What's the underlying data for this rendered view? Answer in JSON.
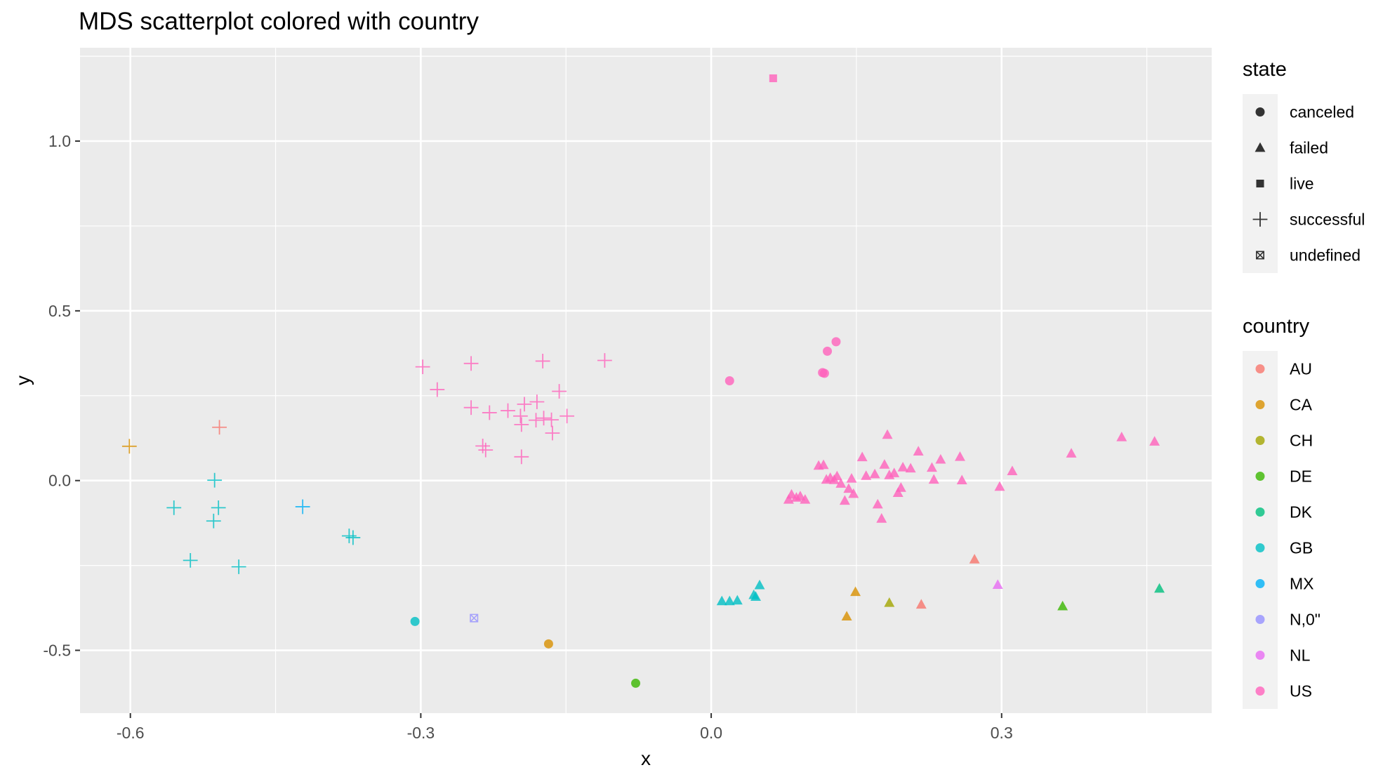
{
  "chart_data": {
    "type": "scatter",
    "title": "MDS scatterplot colored with country",
    "xlabel": "x",
    "ylabel": "y",
    "xlim": [
      -0.652,
      0.517
    ],
    "ylim": [
      -0.685,
      1.275
    ],
    "x_ticks": [
      -0.6,
      -0.3,
      0.0,
      0.3
    ],
    "x_tick_labels": [
      "-0.6",
      "-0.3",
      "0.0",
      "0.3"
    ],
    "y_ticks": [
      -0.5,
      0.0,
      0.5,
      1.0
    ],
    "y_tick_labels": [
      "-0.5",
      "0.0",
      "0.5",
      "1.0"
    ],
    "grid": true,
    "legend_placement": "right",
    "legends": [
      {
        "title": "state",
        "entries": [
          {
            "label": "canceled",
            "shape": "circle"
          },
          {
            "label": "failed",
            "shape": "triangle"
          },
          {
            "label": "live",
            "shape": "square"
          },
          {
            "label": "successful",
            "shape": "plus"
          },
          {
            "label": "undefined",
            "shape": "squarecross"
          }
        ]
      },
      {
        "title": "country",
        "entries": [
          {
            "label": "AU",
            "color": "#F8766D"
          },
          {
            "label": "CA",
            "color": "#D89000"
          },
          {
            "label": "CH",
            "color": "#A3A500"
          },
          {
            "label": "DE",
            "color": "#39B600"
          },
          {
            "label": "DK",
            "color": "#00BF7D"
          },
          {
            "label": "GB",
            "color": "#00BFC4"
          },
          {
            "label": "MX",
            "color": "#00B0F6"
          },
          {
            "label": "N,0\"",
            "color": "#9590FF"
          },
          {
            "label": "NL",
            "color": "#E76BF3"
          },
          {
            "label": "US",
            "color": "#FF62BC"
          }
        ]
      }
    ],
    "points": [
      {
        "x": 0.064,
        "y": 1.185,
        "state": "live",
        "country": "US"
      },
      {
        "x": 0.019,
        "y": 0.294,
        "state": "canceled",
        "country": "US"
      },
      {
        "x": 0.12,
        "y": 0.381,
        "state": "canceled",
        "country": "US"
      },
      {
        "x": 0.129,
        "y": 0.409,
        "state": "canceled",
        "country": "US"
      },
      {
        "x": 0.115,
        "y": 0.318,
        "state": "canceled",
        "country": "US"
      },
      {
        "x": 0.117,
        "y": 0.316,
        "state": "canceled",
        "country": "US"
      },
      {
        "x": -0.306,
        "y": -0.415,
        "state": "canceled",
        "country": "GB"
      },
      {
        "x": -0.168,
        "y": -0.481,
        "state": "canceled",
        "country": "CA"
      },
      {
        "x": -0.078,
        "y": -0.597,
        "state": "canceled",
        "country": "DE"
      },
      {
        "x": -0.245,
        "y": -0.405,
        "state": "undefined",
        "country": "N,0\""
      },
      {
        "x": -0.601,
        "y": 0.101,
        "state": "successful",
        "country": "CA"
      },
      {
        "x": -0.508,
        "y": 0.157,
        "state": "successful",
        "country": "AU"
      },
      {
        "x": -0.513,
        "y": 0.001,
        "state": "successful",
        "country": "GB"
      },
      {
        "x": -0.555,
        "y": -0.08,
        "state": "successful",
        "country": "GB"
      },
      {
        "x": -0.509,
        "y": -0.08,
        "state": "successful",
        "country": "GB"
      },
      {
        "x": -0.514,
        "y": -0.119,
        "state": "successful",
        "country": "GB"
      },
      {
        "x": -0.538,
        "y": -0.235,
        "state": "successful",
        "country": "GB"
      },
      {
        "x": -0.488,
        "y": -0.254,
        "state": "successful",
        "country": "GB"
      },
      {
        "x": -0.422,
        "y": -0.077,
        "state": "successful",
        "country": "MX"
      },
      {
        "x": -0.374,
        "y": -0.163,
        "state": "successful",
        "country": "GB"
      },
      {
        "x": -0.37,
        "y": -0.168,
        "state": "successful",
        "country": "GB"
      },
      {
        "x": -0.298,
        "y": 0.335,
        "state": "successful",
        "country": "US"
      },
      {
        "x": -0.283,
        "y": 0.268,
        "state": "successful",
        "country": "US"
      },
      {
        "x": -0.248,
        "y": 0.345,
        "state": "successful",
        "country": "US"
      },
      {
        "x": -0.248,
        "y": 0.215,
        "state": "successful",
        "country": "US"
      },
      {
        "x": -0.229,
        "y": 0.2,
        "state": "successful",
        "country": "US"
      },
      {
        "x": -0.236,
        "y": 0.102,
        "state": "successful",
        "country": "US"
      },
      {
        "x": -0.233,
        "y": 0.09,
        "state": "successful",
        "country": "US"
      },
      {
        "x": -0.21,
        "y": 0.206,
        "state": "successful",
        "country": "US"
      },
      {
        "x": -0.197,
        "y": 0.19,
        "state": "successful",
        "country": "US"
      },
      {
        "x": -0.196,
        "y": 0.165,
        "state": "successful",
        "country": "US"
      },
      {
        "x": -0.193,
        "y": 0.225,
        "state": "successful",
        "country": "US"
      },
      {
        "x": -0.18,
        "y": 0.232,
        "state": "successful",
        "country": "US"
      },
      {
        "x": -0.181,
        "y": 0.178,
        "state": "successful",
        "country": "US"
      },
      {
        "x": -0.173,
        "y": 0.184,
        "state": "successful",
        "country": "US"
      },
      {
        "x": -0.174,
        "y": 0.352,
        "state": "successful",
        "country": "US"
      },
      {
        "x": -0.165,
        "y": 0.179,
        "state": "successful",
        "country": "US"
      },
      {
        "x": -0.164,
        "y": 0.14,
        "state": "successful",
        "country": "US"
      },
      {
        "x": -0.157,
        "y": 0.263,
        "state": "successful",
        "country": "US"
      },
      {
        "x": -0.149,
        "y": 0.19,
        "state": "successful",
        "country": "US"
      },
      {
        "x": -0.196,
        "y": 0.07,
        "state": "successful",
        "country": "US"
      },
      {
        "x": -0.11,
        "y": 0.354,
        "state": "successful",
        "country": "US"
      },
      {
        "x": 0.011,
        "y": -0.355,
        "state": "failed",
        "country": "GB"
      },
      {
        "x": 0.019,
        "y": -0.355,
        "state": "failed",
        "country": "GB"
      },
      {
        "x": 0.027,
        "y": -0.353,
        "state": "failed",
        "country": "GB"
      },
      {
        "x": 0.044,
        "y": -0.337,
        "state": "failed",
        "country": "GB"
      },
      {
        "x": 0.046,
        "y": -0.342,
        "state": "failed",
        "country": "GB"
      },
      {
        "x": 0.05,
        "y": -0.308,
        "state": "failed",
        "country": "GB"
      },
      {
        "x": 0.149,
        "y": -0.328,
        "state": "failed",
        "country": "CA"
      },
      {
        "x": 0.14,
        "y": -0.4,
        "state": "failed",
        "country": "CA"
      },
      {
        "x": 0.184,
        "y": -0.36,
        "state": "failed",
        "country": "CH"
      },
      {
        "x": 0.217,
        "y": -0.365,
        "state": "failed",
        "country": "AU"
      },
      {
        "x": 0.272,
        "y": -0.232,
        "state": "failed",
        "country": "AU"
      },
      {
        "x": 0.296,
        "y": -0.307,
        "state": "failed",
        "country": "NL"
      },
      {
        "x": 0.363,
        "y": -0.37,
        "state": "failed",
        "country": "DE"
      },
      {
        "x": 0.463,
        "y": -0.318,
        "state": "failed",
        "country": "DK"
      },
      {
        "x": 0.08,
        "y": -0.056,
        "state": "failed",
        "country": "US"
      },
      {
        "x": 0.083,
        "y": -0.041,
        "state": "failed",
        "country": "US"
      },
      {
        "x": 0.088,
        "y": -0.05,
        "state": "failed",
        "country": "US"
      },
      {
        "x": 0.092,
        "y": -0.046,
        "state": "failed",
        "country": "US"
      },
      {
        "x": 0.097,
        "y": -0.056,
        "state": "failed",
        "country": "US"
      },
      {
        "x": 0.111,
        "y": 0.044,
        "state": "failed",
        "country": "US"
      },
      {
        "x": 0.116,
        "y": 0.046,
        "state": "failed",
        "country": "US"
      },
      {
        "x": 0.119,
        "y": 0.003,
        "state": "failed",
        "country": "US"
      },
      {
        "x": 0.123,
        "y": 0.008,
        "state": "failed",
        "country": "US"
      },
      {
        "x": 0.127,
        "y": 0.002,
        "state": "failed",
        "country": "US"
      },
      {
        "x": 0.13,
        "y": 0.013,
        "state": "failed",
        "country": "US"
      },
      {
        "x": 0.134,
        "y": -0.009,
        "state": "failed",
        "country": "US"
      },
      {
        "x": 0.138,
        "y": -0.059,
        "state": "failed",
        "country": "US"
      },
      {
        "x": 0.142,
        "y": -0.024,
        "state": "failed",
        "country": "US"
      },
      {
        "x": 0.145,
        "y": 0.006,
        "state": "failed",
        "country": "US"
      },
      {
        "x": 0.147,
        "y": -0.039,
        "state": "failed",
        "country": "US"
      },
      {
        "x": 0.156,
        "y": 0.069,
        "state": "failed",
        "country": "US"
      },
      {
        "x": 0.16,
        "y": 0.014,
        "state": "failed",
        "country": "US"
      },
      {
        "x": 0.169,
        "y": 0.019,
        "state": "failed",
        "country": "US"
      },
      {
        "x": 0.172,
        "y": -0.07,
        "state": "failed",
        "country": "US"
      },
      {
        "x": 0.176,
        "y": -0.112,
        "state": "failed",
        "country": "US"
      },
      {
        "x": 0.179,
        "y": 0.047,
        "state": "failed",
        "country": "US"
      },
      {
        "x": 0.182,
        "y": 0.135,
        "state": "failed",
        "country": "US"
      },
      {
        "x": 0.184,
        "y": 0.016,
        "state": "failed",
        "country": "US"
      },
      {
        "x": 0.189,
        "y": 0.022,
        "state": "failed",
        "country": "US"
      },
      {
        "x": 0.193,
        "y": -0.036,
        "state": "failed",
        "country": "US"
      },
      {
        "x": 0.196,
        "y": -0.021,
        "state": "failed",
        "country": "US"
      },
      {
        "x": 0.198,
        "y": 0.039,
        "state": "failed",
        "country": "US"
      },
      {
        "x": 0.206,
        "y": 0.036,
        "state": "failed",
        "country": "US"
      },
      {
        "x": 0.214,
        "y": 0.086,
        "state": "failed",
        "country": "US"
      },
      {
        "x": 0.228,
        "y": 0.038,
        "state": "failed",
        "country": "US"
      },
      {
        "x": 0.23,
        "y": 0.003,
        "state": "failed",
        "country": "US"
      },
      {
        "x": 0.237,
        "y": 0.062,
        "state": "failed",
        "country": "US"
      },
      {
        "x": 0.257,
        "y": 0.07,
        "state": "failed",
        "country": "US"
      },
      {
        "x": 0.259,
        "y": 0.001,
        "state": "failed",
        "country": "US"
      },
      {
        "x": 0.298,
        "y": -0.018,
        "state": "failed",
        "country": "US"
      },
      {
        "x": 0.311,
        "y": 0.028,
        "state": "failed",
        "country": "US"
      },
      {
        "x": 0.372,
        "y": 0.08,
        "state": "failed",
        "country": "US"
      },
      {
        "x": 0.424,
        "y": 0.128,
        "state": "failed",
        "country": "US"
      },
      {
        "x": 0.458,
        "y": 0.115,
        "state": "failed",
        "country": "US"
      }
    ]
  }
}
